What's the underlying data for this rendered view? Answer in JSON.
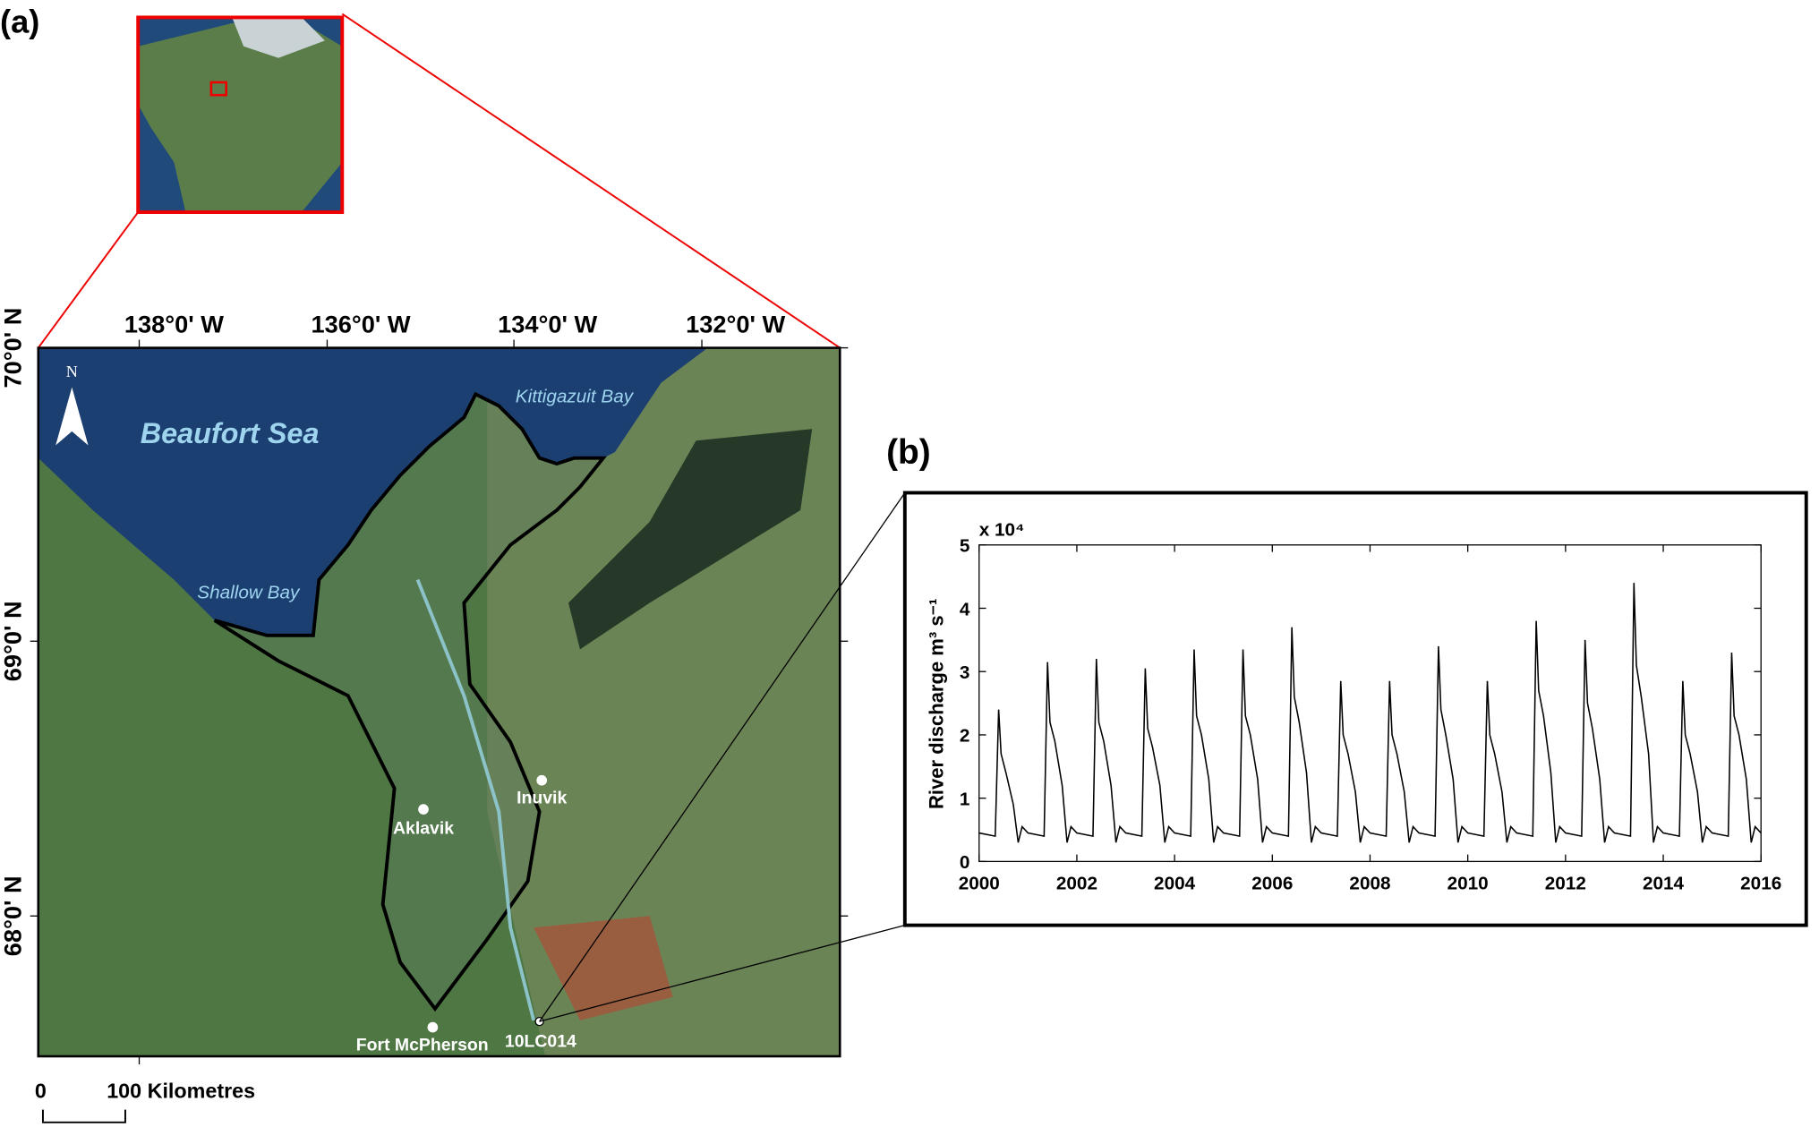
{
  "panel_a": "(a)",
  "panel_b": "(b)",
  "map": {
    "north": "N",
    "sea": "Beaufort Sea",
    "bays": [
      "Kittigazuit Bay",
      "Shallow Bay"
    ],
    "places": [
      "Inuvik",
      "Aklavik",
      "Fort McPherson",
      "10LC014"
    ],
    "lon_labels": [
      "138°0'  W",
      "136°0'  W",
      "134°0'  W",
      "132°0'  W"
    ],
    "lat_labels": [
      "70°0' N",
      "69°0' N",
      "68°0' N"
    ],
    "scale_labels": [
      "0",
      "100 Kilometres"
    ]
  },
  "chart_data": {
    "type": "line",
    "ylabel": "River discharge  m³ s⁻¹",
    "multiplier": "x 10⁴",
    "color": "#000000",
    "x": [
      2000,
      2000.33,
      2000.4,
      2000.45,
      2000.55,
      2000.7,
      2000.8,
      2000.88,
      2001,
      2001.33,
      2001.4,
      2001.45,
      2001.55,
      2001.7,
      2001.8,
      2001.88,
      2002,
      2002.33,
      2002.4,
      2002.45,
      2002.55,
      2002.7,
      2002.8,
      2002.88,
      2003,
      2003.33,
      2003.4,
      2003.45,
      2003.55,
      2003.7,
      2003.8,
      2003.88,
      2004,
      2004.33,
      2004.4,
      2004.45,
      2004.55,
      2004.7,
      2004.8,
      2004.88,
      2005,
      2005.33,
      2005.4,
      2005.45,
      2005.55,
      2005.7,
      2005.8,
      2005.88,
      2006,
      2006.33,
      2006.4,
      2006.45,
      2006.55,
      2006.7,
      2006.8,
      2006.88,
      2007,
      2007.33,
      2007.4,
      2007.45,
      2007.55,
      2007.7,
      2007.8,
      2007.88,
      2008,
      2008.33,
      2008.4,
      2008.45,
      2008.55,
      2008.7,
      2008.8,
      2008.88,
      2009,
      2009.33,
      2009.4,
      2009.45,
      2009.55,
      2009.7,
      2009.8,
      2009.88,
      2010,
      2010.33,
      2010.4,
      2010.45,
      2010.55,
      2010.7,
      2010.8,
      2010.88,
      2011,
      2011.33,
      2011.4,
      2011.45,
      2011.55,
      2011.7,
      2011.8,
      2011.88,
      2012,
      2012.33,
      2012.4,
      2012.45,
      2012.55,
      2012.7,
      2012.8,
      2012.88,
      2013,
      2013.33,
      2013.4,
      2013.45,
      2013.55,
      2013.7,
      2013.8,
      2013.88,
      2014,
      2014.33,
      2014.4,
      2014.45,
      2014.55,
      2014.7,
      2014.8,
      2014.88,
      2015,
      2015.33,
      2015.4,
      2015.45,
      2015.55,
      2015.7,
      2015.8,
      2015.88,
      2016
    ],
    "values": [
      0.45,
      0.4,
      2.4,
      1.7,
      1.4,
      0.9,
      0.3,
      0.55,
      0.45,
      0.4,
      3.15,
      2.2,
      1.9,
      1.2,
      0.3,
      0.55,
      0.45,
      0.4,
      3.2,
      2.2,
      1.9,
      1.2,
      0.3,
      0.55,
      0.45,
      0.4,
      3.05,
      2.1,
      1.8,
      1.2,
      0.3,
      0.55,
      0.45,
      0.4,
      3.35,
      2.3,
      2.0,
      1.3,
      0.3,
      0.55,
      0.45,
      0.4,
      3.35,
      2.3,
      2.0,
      1.3,
      0.3,
      0.55,
      0.45,
      0.4,
      3.7,
      2.6,
      2.2,
      1.4,
      0.3,
      0.55,
      0.45,
      0.4,
      2.85,
      2.0,
      1.7,
      1.1,
      0.3,
      0.55,
      0.45,
      0.4,
      2.85,
      2.0,
      1.7,
      1.1,
      0.3,
      0.55,
      0.45,
      0.4,
      3.4,
      2.4,
      2.0,
      1.3,
      0.3,
      0.55,
      0.45,
      0.4,
      2.85,
      2.0,
      1.7,
      1.1,
      0.3,
      0.55,
      0.45,
      0.4,
      3.8,
      2.7,
      2.3,
      1.4,
      0.3,
      0.55,
      0.45,
      0.4,
      3.5,
      2.5,
      2.1,
      1.3,
      0.3,
      0.55,
      0.45,
      0.4,
      4.4,
      3.1,
      2.6,
      1.7,
      0.3,
      0.55,
      0.45,
      0.4,
      2.85,
      2.0,
      1.7,
      1.1,
      0.3,
      0.55,
      0.45,
      0.4,
      3.3,
      2.3,
      2.0,
      1.3,
      0.3,
      0.55,
      0.45
    ],
    "xlim": [
      2000,
      2016
    ],
    "xticks": [
      2000,
      2002,
      2004,
      2006,
      2008,
      2010,
      2012,
      2014,
      2016
    ],
    "ylim": [
      0,
      5
    ],
    "yticks": [
      0,
      1,
      2,
      3,
      4,
      5
    ]
  }
}
